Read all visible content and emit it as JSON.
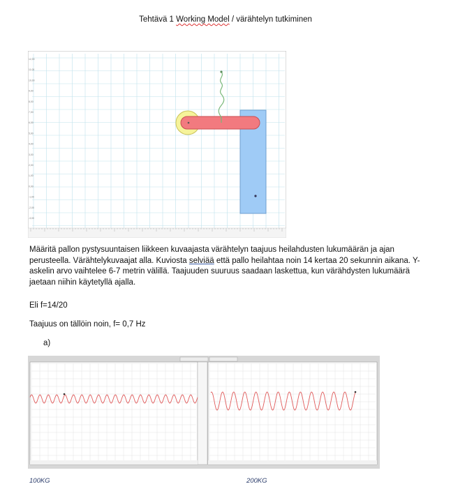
{
  "document": {
    "title_before": "Tehtävä 1 ",
    "title_flagged": "Working Model",
    "title_after": " / värähtelyn tutkiminen",
    "para_part1": "Määritä pallon pystysuuntaisen liikkeen kuvaajasta värähtelyn taajuus heilahdusten lukumäärän ja ajan perusteella. Värähtelykuvaajat alla. Kuviosta ",
    "para_flagged": "selviää",
    "para_part2": " että pallo heilahtaa noin 14 kertaa 20 sekunnin aikana.  Y-askelin arvo vaihtelee 6-7 metrin välillä. Taajuuden suuruus saadaan laskettua, kun värähdysten lukumäärä jaetaan niihin käytetyllä ajalla.",
    "eli": "Eli f=14/20",
    "taajuus": "Taajuus on tällöin noin, f= 0,7 Hz",
    "label_a": "a)",
    "caption_left": "100KG",
    "caption_right": "200KG"
  },
  "colors": {
    "grid_line": "#bfe1ec",
    "ball_yellow": "#f6f39a",
    "bar_red": "#f27a7f",
    "block_blue": "#9fcbf6",
    "spring_green": "#78b878",
    "wave_red": "#e05a5a",
    "caption": "#2b3d6b"
  },
  "sim_screenshot": {
    "y_tick_labels": [
      "12,00",
      "11,00",
      "10,00",
      "9,00",
      "8,00",
      "7,00",
      "6,00",
      "5,00",
      "4,00",
      "3,00",
      "2,00",
      "1,00",
      "0,00",
      "-1,00",
      "-2,00",
      "-3,00"
    ]
  },
  "chart_data": [
    {
      "type": "line",
      "title": "",
      "series": [
        {
          "name": "",
          "frequency_hz": 0.7,
          "cycles_visible": 20
        }
      ],
      "note_visible": "oscillation trace, 100KG"
    },
    {
      "type": "line",
      "title": "",
      "series": [
        {
          "name": "",
          "frequency_hz": 0.7,
          "cycles_visible": 13
        }
      ]
    }
  ]
}
